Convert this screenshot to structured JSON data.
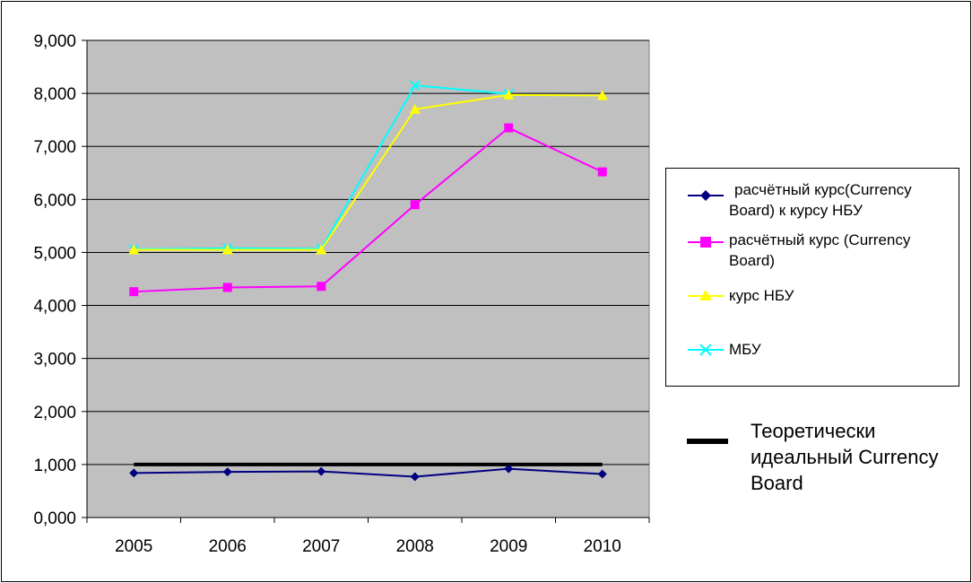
{
  "chart_data": {
    "type": "line",
    "categories": [
      "2005",
      "2006",
      "2007",
      "2008",
      "2009",
      "2010"
    ],
    "ylim": [
      0,
      9
    ],
    "yticks": [
      "0,000",
      "1,000",
      "2,000",
      "3,000",
      "4,000",
      "5,000",
      "6,000",
      "7,000",
      "8,000",
      "9,000"
    ],
    "grid": true,
    "plot_background": "#c0c0c0",
    "legend_position": "right",
    "series": [
      {
        "name": "расчётный курс(Currency Board) к курсу НБУ",
        "color": "#000080",
        "marker": "diamond",
        "values": [
          0.84,
          0.86,
          0.87,
          0.77,
          0.92,
          0.82
        ]
      },
      {
        "name": "расчётный курс (Currency Board)",
        "color": "#ff00ff",
        "marker": "square",
        "values": [
          4.26,
          4.34,
          4.36,
          5.9,
          7.35,
          6.52
        ]
      },
      {
        "name": "курс НБУ",
        "color": "#ffff00",
        "marker": "triangle",
        "values": [
          5.05,
          5.05,
          5.05,
          7.7,
          7.97,
          7.96
        ]
      },
      {
        "name": "МБУ",
        "color": "#00ffff",
        "marker": "x",
        "values": [
          5.06,
          5.08,
          5.07,
          8.15,
          7.99,
          null
        ]
      }
    ],
    "reference_line": {
      "label": "Теоретически идеальный Currency Board",
      "value": 1.0,
      "color": "#000000"
    }
  }
}
